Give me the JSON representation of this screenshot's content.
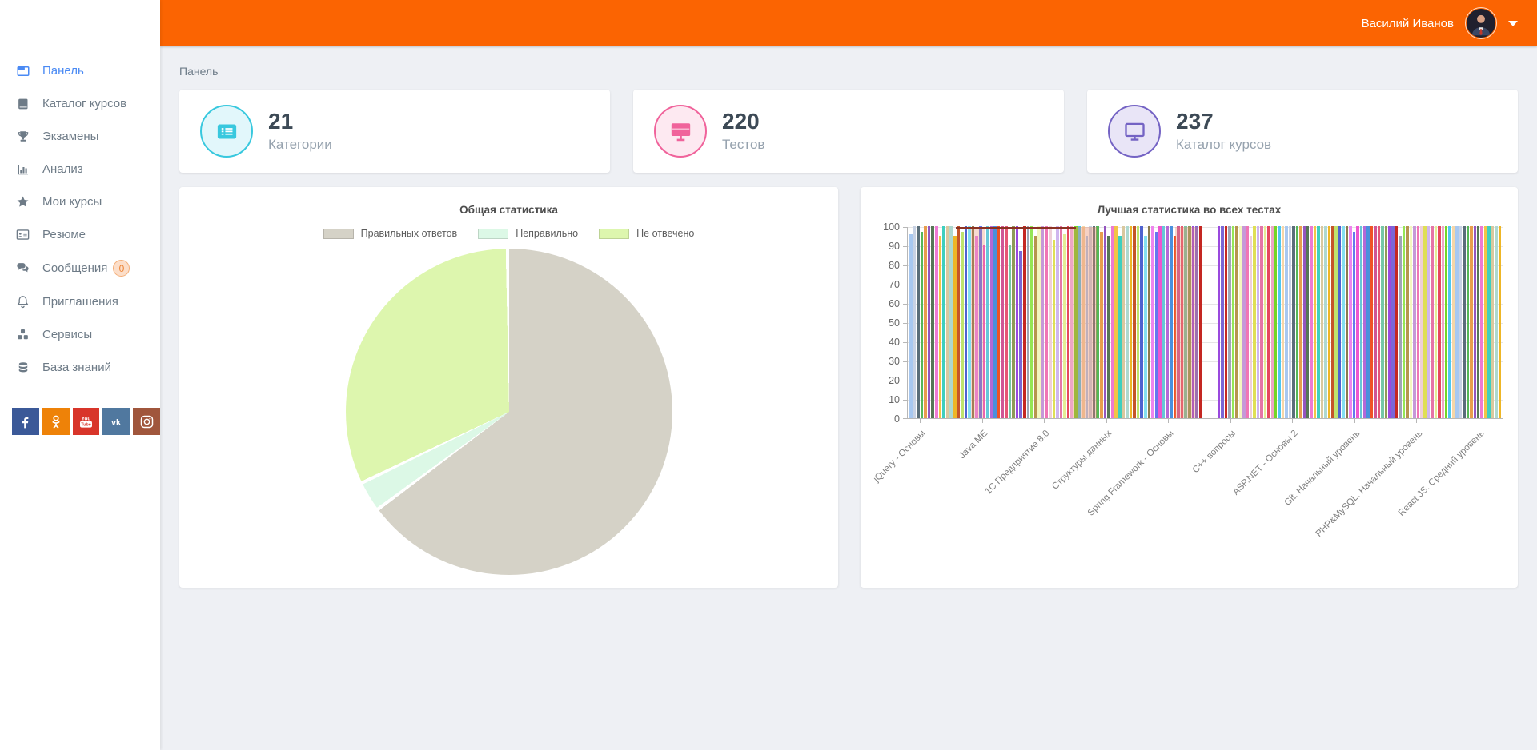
{
  "theme": {
    "header_bg": "#fb6402",
    "sidebar_active": "#4a8af4",
    "content_bg": "#eef0f4",
    "badge_bg": "#fcdec9",
    "badge_border": "#f3ad77",
    "badge_text": "#ec8435"
  },
  "header": {
    "user_name": "Василий Иванов"
  },
  "breadcrumb": "Панель",
  "sidebar": {
    "items": [
      {
        "slug": "panel",
        "label": "Панель",
        "icon": "window-icon",
        "active": true
      },
      {
        "slug": "course-catalog",
        "label": "Каталог курсов",
        "icon": "book-icon",
        "active": false
      },
      {
        "slug": "exams",
        "label": "Экзамены",
        "icon": "trophy-icon",
        "active": false
      },
      {
        "slug": "analysis",
        "label": "Анализ",
        "icon": "bar-chart-icon",
        "active": false
      },
      {
        "slug": "my-courses",
        "label": "Мои курсы",
        "icon": "star-icon",
        "active": false
      },
      {
        "slug": "resume",
        "label": "Резюме",
        "icon": "id-card-icon",
        "active": false
      },
      {
        "slug": "messages",
        "label": "Сообщения",
        "icon": "chat-icon",
        "active": false,
        "badge": "0"
      },
      {
        "slug": "invitations",
        "label": "Приглашения",
        "icon": "bell-icon",
        "active": false
      },
      {
        "slug": "services",
        "label": "Сервисы",
        "icon": "cubes-icon",
        "active": false
      },
      {
        "slug": "knowledge-base",
        "label": "База знаний",
        "icon": "database-icon",
        "active": false
      }
    ],
    "social": [
      {
        "name": "facebook",
        "color": "#3b5998"
      },
      {
        "name": "odnoklassniki",
        "color": "#ee8208"
      },
      {
        "name": "youtube",
        "color": "#d8352a"
      },
      {
        "name": "vk",
        "color": "#50789f"
      },
      {
        "name": "instagram",
        "color": "#a0563c"
      }
    ]
  },
  "stats": [
    {
      "value": "21",
      "label": "Категории",
      "icon": "list-icon",
      "accent": "#38c8de",
      "bg": "#e2f7fb"
    },
    {
      "value": "220",
      "label": "Тестов",
      "icon": "monitor-solid-icon",
      "accent": "#f0639b",
      "bg": "#fde9f1"
    },
    {
      "value": "237",
      "label": "Каталог курсов",
      "icon": "monitor-outline-icon",
      "accent": "#7463c4",
      "bg": "#e9e5f7"
    }
  ],
  "chart_data": [
    {
      "type": "pie",
      "title": "Общая статистика",
      "legend_position": "top",
      "slices": [
        {
          "label": "Правильных ответов",
          "value": 65,
          "color": "#d5d2c7"
        },
        {
          "label": "Неправильно",
          "value": 3,
          "color": "#dcf8e6"
        },
        {
          "label": "Не отвечено",
          "value": 32,
          "color": "#ddf6ae"
        }
      ]
    },
    {
      "type": "bar",
      "title": "Лучшая статистика во всех тестах",
      "ylabel": "",
      "xlabel": "",
      "ylim": [
        0,
        100
      ],
      "yticks": [
        0,
        10,
        20,
        30,
        40,
        50,
        60,
        70,
        80,
        90,
        100
      ],
      "grid": true,
      "legend": "hidden",
      "categories": [
        "jQuery - Основы",
        "Java ME",
        "1С Предприятие 8.0",
        "Структуры данных",
        "Spring Framework - Основы",
        "C++ вопросы",
        "ASP.NET - Основы 2",
        "Git. Начальный уровень",
        "PHP&MySQL. Начальный уровень",
        "React JS. Средний уровень"
      ],
      "groups": [
        {
          "values": [
            96,
            100,
            100,
            97,
            100,
            100,
            100,
            100,
            95,
            100,
            100,
            100,
            95,
            100,
            97,
            100,
            100,
            100,
            95,
            100,
            90,
            100,
            100,
            100,
            100,
            100,
            100,
            90,
            100,
            100,
            87,
            100,
            100,
            100,
            95,
            100,
            100,
            100,
            100,
            93,
            100,
            100,
            96,
            100,
            100,
            100,
            100,
            100,
            95,
            100,
            100,
            100,
            97,
            100,
            95,
            100,
            100,
            95,
            100,
            100,
            100,
            100,
            100,
            100,
            95,
            100,
            100,
            97,
            100,
            100,
            100,
            100,
            95,
            100,
            100,
            100,
            100,
            100,
            100,
            100
          ]
        },
        {
          "values": [
            100,
            100,
            100,
            100,
            100,
            100,
            100,
            100,
            100,
            95,
            100,
            100,
            100,
            100,
            100,
            100,
            100,
            100,
            100,
            100,
            100,
            100,
            100,
            100,
            100,
            100,
            100,
            100,
            100,
            100,
            100,
            100,
            100,
            100,
            100,
            100,
            100,
            100,
            97,
            100,
            100,
            100,
            100,
            100,
            100,
            100,
            100,
            100,
            100,
            100,
            100,
            95,
            100,
            100,
            100,
            100,
            100,
            100,
            100,
            100,
            100,
            100,
            100,
            100,
            100,
            100,
            100,
            100,
            100,
            100,
            100,
            100,
            100,
            100,
            100,
            100,
            100,
            100,
            100,
            100
          ]
        }
      ],
      "palette": [
        "#a8c8f0",
        "#ee7ad2",
        "#bfe36e",
        "#66c7d8",
        "#8f9a58",
        "#f4f6c0",
        "#e4ec96",
        "#c8d2e4",
        "#f2c445",
        "#4f62cf",
        "#b568d6",
        "#9a49de",
        "#c698d8",
        "#e6485e",
        "#5a6e7a",
        "#3ecfbe",
        "#84dff0",
        "#4a90dd",
        "#7a66d6",
        "#f075b5",
        "#efa6c6",
        "#55b757",
        "#d9c89e",
        "#8a7a4e",
        "#ef5326",
        "#c42722",
        "#efd0d8",
        "#74d625",
        "#e89d4d",
        "#aed8cf",
        "#ee85ee",
        "#cf5695",
        "#9ea6b6",
        "#dfdf55",
        "#4fc7ef",
        "#9455bf",
        "#eeb626",
        "#6576ef",
        "#e65575",
        "#95e655",
        "#cfb6ef",
        "#f6d6a6",
        "#567656",
        "#c45529",
        "#ee55cf",
        "#75c7a6",
        "#b6954f",
        "#e675a6"
      ],
      "overlays": {
        "top_segment": {
          "group": 0,
          "start_pct": 16,
          "end_pct": 57,
          "color": "#8b3123"
        },
        "bands": [
          {
            "group": 0,
            "start_pct": 21,
            "end_pct": 26,
            "color": "rgba(229,134,100,0.30)"
          },
          {
            "group": 0,
            "start_pct": 56,
            "end_pct": 64,
            "color": "rgba(229,134,100,0.38)"
          },
          {
            "group": 0,
            "start_pct": 91,
            "end_pct": 99,
            "color": "rgba(229,134,100,0.33)"
          }
        ]
      }
    }
  ]
}
